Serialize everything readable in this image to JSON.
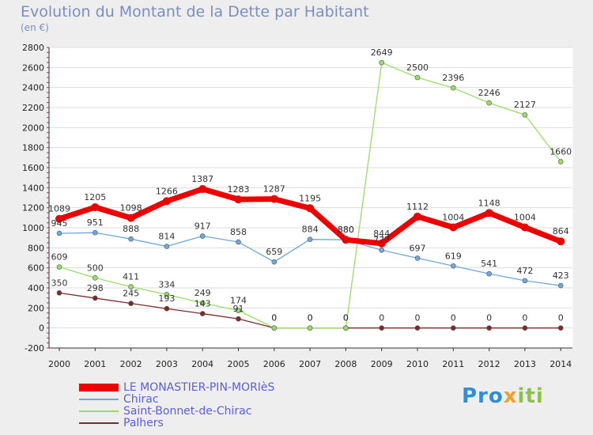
{
  "title": "Evolution du Montant de la Dette par Habitant",
  "subtitle": "(en €)",
  "logo": {
    "part1": "Pro",
    "part2": "x",
    "part3": "iti"
  },
  "chart_data": {
    "type": "line",
    "title": "Evolution du Montant de la Dette par Habitant",
    "ylabel": "(en €)",
    "xlabel": "",
    "ylim": [
      -200,
      2800
    ],
    "yticks": [
      -200,
      0,
      200,
      400,
      600,
      800,
      1000,
      1200,
      1400,
      1600,
      1800,
      2000,
      2200,
      2400,
      2600,
      2800
    ],
    "grid": true,
    "legend_position": "bottom-left",
    "x": [
      "2000",
      "2001",
      "2002",
      "2003",
      "2004",
      "2005",
      "2006",
      "2007",
      "2008",
      "2009",
      "2010",
      "2011",
      "2012",
      "2013",
      "2014"
    ],
    "series": [
      {
        "name": "LE MONASTIER-PIN-MORIèS",
        "color": "#ee0000",
        "width": 7,
        "values": [
          1089,
          1205,
          1098,
          1266,
          1387,
          1283,
          1287,
          1195,
          880,
          844,
          1112,
          1004,
          1148,
          1004,
          864
        ],
        "labels": [
          "1089",
          "1205",
          "1098",
          "1266",
          "1387",
          "1283",
          "1287",
          "1195",
          "880",
          "844",
          "1112",
          "1004",
          "1148",
          "1004",
          "864"
        ]
      },
      {
        "name": "Chirac",
        "color": "#6fa8dc",
        "width": 1.3,
        "values": [
          945,
          951,
          888,
          814,
          917,
          858,
          659,
          884,
          880,
          777,
          697,
          619,
          541,
          472,
          423
        ],
        "labels": [
          "945",
          "951",
          "888",
          "814",
          "917",
          "858",
          "659",
          "884",
          "880",
          "777",
          "697",
          "619",
          "541",
          "472",
          "423"
        ]
      },
      {
        "name": "Saint-Bonnet-de-Chirac",
        "color": "#99dd66",
        "width": 1.3,
        "values": [
          609,
          500,
          411,
          334,
          249,
          174,
          0,
          0,
          0,
          2649,
          2500,
          2396,
          2246,
          2127,
          1660
        ],
        "labels": [
          "609",
          "500",
          "411",
          "334",
          "249",
          "174",
          "0",
          "0",
          "0",
          "2649",
          "2500",
          "2396",
          "2246",
          "2127",
          "1660"
        ]
      },
      {
        "name": "Palhers",
        "color": "#7a2b2b",
        "width": 1.3,
        "values": [
          350,
          298,
          245,
          193,
          143,
          91,
          0,
          0,
          0,
          0,
          0,
          0,
          0,
          0,
          0
        ],
        "labels": [
          "350",
          "298",
          "245",
          "193",
          "143",
          "91",
          "0",
          "0",
          "0",
          "0",
          "0",
          "0",
          "0",
          "0",
          "0"
        ]
      }
    ]
  }
}
